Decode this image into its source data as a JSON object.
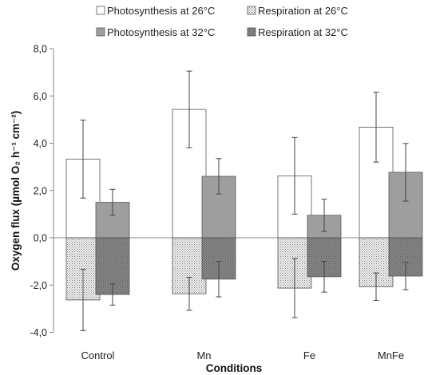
{
  "chart_data": {
    "type": "bar",
    "title": "",
    "xlabel": "Conditions",
    "ylabel": "Oxygen flux (µmol O₂ h⁻¹ cm⁻²)",
    "ylim": [
      -4,
      8
    ],
    "yticks": [
      "-4,0",
      "-2,0",
      "0,0",
      "2,0",
      "4,0",
      "6,0",
      "8,0"
    ],
    "categories": [
      "Control",
      "Mn",
      "Fe",
      "MnFe"
    ],
    "legend_position": "top",
    "grid": false,
    "series": [
      {
        "name": "Photosynthesis at 26°C",
        "values": [
          3.33,
          5.43,
          2.62,
          4.68
        ],
        "errors": [
          1.65,
          1.62,
          1.62,
          1.48
        ],
        "pattern": "white",
        "slot": 0
      },
      {
        "name": "Photosynthesis at 32°C",
        "values": [
          1.5,
          2.6,
          0.95,
          2.77
        ],
        "errors": [
          0.55,
          0.75,
          0.68,
          1.22
        ],
        "pattern": "gray",
        "slot": 1
      },
      {
        "name": "Respiration at 26°C",
        "values": [
          -2.63,
          -2.37,
          -2.13,
          -2.07
        ],
        "errors": [
          1.3,
          0.7,
          1.25,
          0.58
        ],
        "pattern": "dots",
        "slot": 0
      },
      {
        "name": "Respiration at 32°C",
        "values": [
          -2.4,
          -1.75,
          -1.65,
          -1.62
        ],
        "errors": [
          0.45,
          0.75,
          0.65,
          0.58
        ],
        "pattern": "darkdots",
        "slot": 1
      }
    ],
    "legend_order": [
      0,
      2,
      1,
      3
    ],
    "colors": {
      "gray": "#9e9e9e",
      "outline": "#555555",
      "error": "#444444",
      "axis": "#888888"
    }
  }
}
